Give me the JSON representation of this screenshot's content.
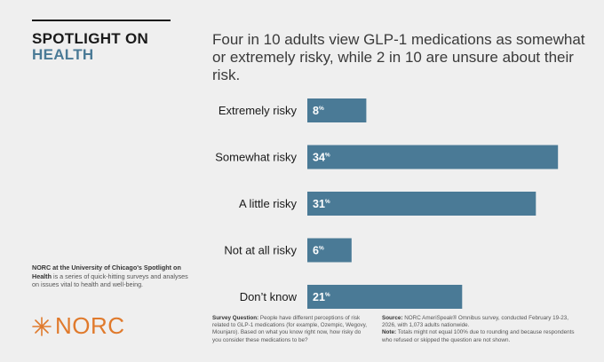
{
  "brand": {
    "line1": "SPOTLIGHT ON",
    "line2": "HEALTH"
  },
  "headline": "Four in 10 adults view GLP-1 medications as somewhat or extremely risky, while 2 in 10 are unsure about their risk.",
  "about": {
    "lead": "NORC at the University of Chicago's Spotlight on Health",
    "rest": " is a series of quick-hitting surveys and analyses on issues vital to health and well-being."
  },
  "logo": {
    "text": "NORC"
  },
  "footnotes": {
    "question_label": "Survey Question:",
    "question_text": " People have different perceptions of risk related to GLP-1 medications (for example, Ozempic, Wegovy, Mounjaro). Based on what you know right now, how risky do you consider these medications to be?",
    "source_label": "Source:",
    "source_text": " NORC AmeriSpeak® Omnibus survey, conducted February 19-23, 2026, with 1,073 adults nationwide.",
    "note_label": "Note:",
    "note_text": " Totals might not equal 100% due to rounding and because respondents who refused or skipped the question are not shown."
  },
  "colors": {
    "bar": "#4a7a96",
    "accent": "#4a7a96",
    "logo": "#e07a2c"
  },
  "chart_data": {
    "type": "bar",
    "orientation": "horizontal",
    "categories": [
      "Extremely risky",
      "Somewhat risky",
      "A little risky",
      "Not at all risky",
      "Don’t know"
    ],
    "values": [
      8,
      34,
      31,
      6,
      21
    ],
    "value_suffix": "%"
  }
}
